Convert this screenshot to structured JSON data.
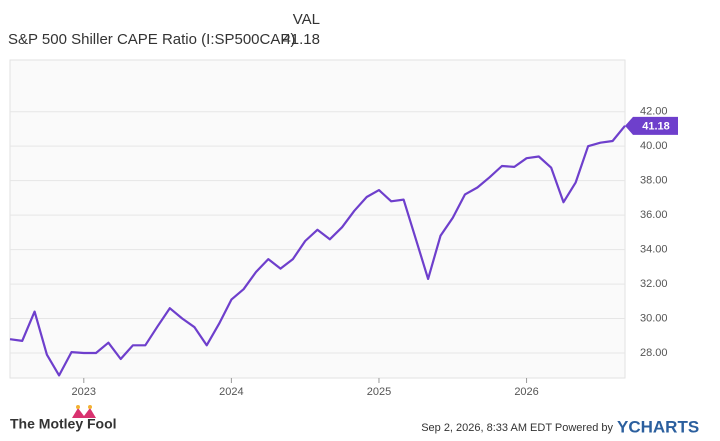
{
  "chart_data": {
    "type": "line",
    "title": "S&P 500 Shiller CAPE Ratio (I:SP500CAP)",
    "column_header": "VAL",
    "footer": "Sep 2, 2026, 8:33 AM EDT Powered by",
    "brand": "YCHARTS",
    "logo": "The Motley Fool",
    "x": [
      2022.5,
      2022.583,
      2022.667,
      2022.75,
      2022.833,
      2022.917,
      2023.0,
      2023.083,
      2023.167,
      2023.25,
      2023.333,
      2023.417,
      2023.5,
      2023.583,
      2023.667,
      2023.75,
      2023.833,
      2023.917,
      2024.0,
      2024.083,
      2024.167,
      2024.25,
      2024.333,
      2024.417,
      2024.5,
      2024.583,
      2024.667,
      2024.75,
      2024.833,
      2024.917,
      2025.0,
      2025.083,
      2025.167,
      2025.25,
      2025.333,
      2025.417,
      2025.5,
      2025.583,
      2025.667,
      2025.75,
      2025.833,
      2025.917,
      2026.0,
      2026.083,
      2026.167,
      2026.25,
      2026.333,
      2026.417,
      2026.5,
      2026.583,
      2026.667
    ],
    "series": [
      {
        "name": "S&P 500 Shiller CAPE Ratio",
        "color": "#6e3fcc",
        "values": [
          28.8,
          28.7,
          30.4,
          27.9,
          26.7,
          28.05,
          28.0,
          28.0,
          28.6,
          27.65,
          28.45,
          28.45,
          29.55,
          30.6,
          30.0,
          29.5,
          28.45,
          29.7,
          31.1,
          31.7,
          32.7,
          33.45,
          32.9,
          33.45,
          34.5,
          35.15,
          34.6,
          35.3,
          36.25,
          37.05,
          37.45,
          36.8,
          36.9,
          34.6,
          32.3,
          34.8,
          35.85,
          37.2,
          37.6,
          38.2,
          38.85,
          38.8,
          39.3,
          39.4,
          38.75,
          36.75,
          37.9,
          40.0,
          40.2,
          40.3,
          41.18
        ]
      }
    ],
    "xlim": [
      2022.5,
      2026.667
    ],
    "xticks": [
      2023,
      2024,
      2025,
      2026
    ],
    "ylim": [
      26.55,
      45
    ],
    "yticks": [
      {
        "value": 28,
        "label": "28.00"
      },
      {
        "value": 30,
        "label": "30.00"
      },
      {
        "value": 32,
        "label": "32.00"
      },
      {
        "value": 34,
        "label": "34.00"
      },
      {
        "value": 36,
        "label": "36.00"
      },
      {
        "value": 38,
        "label": "38.00"
      },
      {
        "value": 40,
        "label": "40.00"
      },
      {
        "value": 42,
        "label": "42.00"
      }
    ],
    "grid": true
  }
}
